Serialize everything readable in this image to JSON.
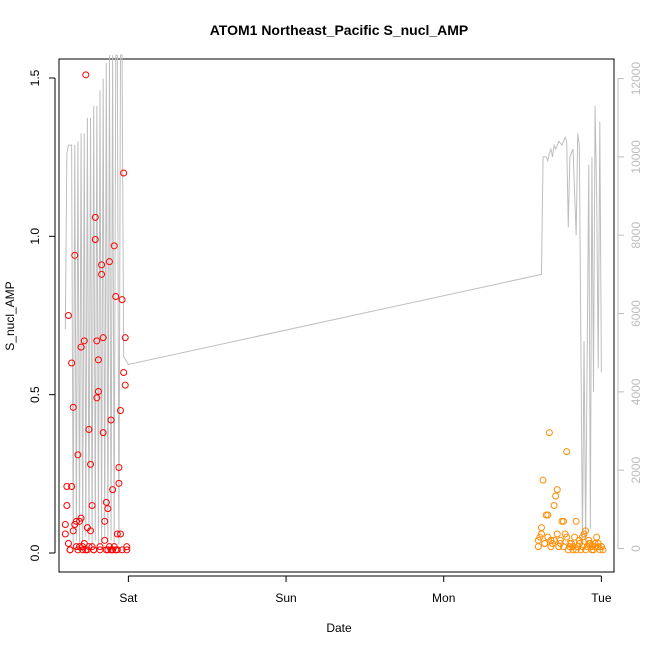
{
  "chart_data": {
    "type": "scatter",
    "title": "ATOM1 Northeast_Pacific S_nucl_AMP",
    "xlabel": "Date",
    "ylabel": "S_nucl_AMP",
    "x_ticks": [
      {
        "x": 1.0,
        "label": "Sat"
      },
      {
        "x": 2.0,
        "label": "Sun"
      },
      {
        "x": 3.0,
        "label": "Mon"
      },
      {
        "x": 4.0,
        "label": "Tue"
      }
    ],
    "xlim": [
      0.56,
      4.08
    ],
    "ylim": [
      -0.06,
      1.56
    ],
    "y_ticks": [
      0.0,
      0.5,
      1.0,
      1.5
    ],
    "y2lim": [
      -0.6,
      12.5
    ],
    "y2_ticks": [
      0,
      2000,
      4000,
      6000,
      8000,
      10000,
      12000
    ],
    "colors": {
      "series1": "#ff0000",
      "series2": "#ff8c00",
      "line": "#bebebe",
      "axis": "#000000",
      "right_axis": "#bdbdbd"
    },
    "series": [
      {
        "color": "#ff0000",
        "x": [
          0.6,
          0.61,
          0.62,
          0.63,
          0.64,
          0.65,
          0.66,
          0.67,
          0.68,
          0.69,
          0.7,
          0.71,
          0.72,
          0.73,
          0.74,
          0.75,
          0.76,
          0.77,
          0.78,
          0.79,
          0.8,
          0.81,
          0.82,
          0.83,
          0.84,
          0.85,
          0.86,
          0.87,
          0.88,
          0.89,
          0.9,
          0.91,
          0.92,
          0.93,
          0.94,
          0.95,
          0.96,
          0.97,
          0.98,
          0.99,
          0.6,
          0.61,
          0.62,
          0.63,
          0.64,
          0.65,
          0.66,
          0.67,
          0.68,
          0.69,
          0.7,
          0.71,
          0.72,
          0.73,
          0.74,
          0.75,
          0.76,
          0.77,
          0.78,
          0.79,
          0.8,
          0.81,
          0.82,
          0.83,
          0.84,
          0.85,
          0.86,
          0.87,
          0.88,
          0.89,
          0.9,
          0.91,
          0.92,
          0.93,
          0.94,
          0.95,
          0.96,
          0.97,
          0.98,
          0.99
        ],
        "values": [
          0.09,
          0.21,
          0.75,
          0.01,
          0.6,
          0.46,
          0.94,
          0.02,
          0.31,
          0.1,
          0.65,
          0.02,
          0.67,
          1.51,
          0.01,
          0.39,
          0.28,
          0.15,
          0.01,
          1.06,
          0.67,
          0.61,
          0.02,
          0.91,
          0.68,
          0.04,
          0.16,
          0.14,
          0.92,
          0.42,
          0.2,
          0.97,
          0.81,
          0.06,
          0.22,
          0.45,
          0.01,
          1.2,
          0.68,
          0.02,
          0.06,
          0.15,
          0.03,
          0.01,
          0.21,
          0.07,
          0.09,
          0.1,
          0.01,
          0.02,
          0.11,
          0.01,
          0.03,
          0.01,
          0.08,
          0.02,
          0.07,
          0.02,
          0.01,
          0.99,
          0.49,
          0.51,
          0.01,
          0.88,
          0.38,
          0.1,
          0.01,
          0.01,
          0.02,
          0.01,
          0.01,
          0.02,
          0.01,
          0.01,
          0.27,
          0.06,
          0.8,
          0.57,
          0.53,
          0.01
        ]
      },
      {
        "color": "#ff8c00",
        "x": [
          3.6,
          3.61,
          3.62,
          3.63,
          3.64,
          3.65,
          3.66,
          3.67,
          3.68,
          3.69,
          3.7,
          3.71,
          3.72,
          3.73,
          3.74,
          3.75,
          3.76,
          3.77,
          3.78,
          3.79,
          3.8,
          3.81,
          3.82,
          3.83,
          3.84,
          3.85,
          3.86,
          3.87,
          3.88,
          3.89,
          3.9,
          3.91,
          3.92,
          3.93,
          3.94,
          3.95,
          3.96,
          3.97,
          3.98,
          3.99,
          4.0,
          4.01,
          3.6,
          3.62,
          3.64,
          3.66,
          3.68,
          3.7,
          3.72,
          3.74,
          3.76,
          3.78,
          3.8,
          3.82,
          3.84,
          3.86,
          3.88,
          3.9,
          3.92,
          3.94,
          3.96,
          3.98,
          4.0
        ],
        "values": [
          0.02,
          0.05,
          0.08,
          0.23,
          0.03,
          0.12,
          0.05,
          0.38,
          0.04,
          0.03,
          0.15,
          0.18,
          0.06,
          0.02,
          0.04,
          0.1,
          0.1,
          0.06,
          0.32,
          0.01,
          0.02,
          0.03,
          0.01,
          0.05,
          0.1,
          0.02,
          0.03,
          0.01,
          0.05,
          0.06,
          0.01,
          0.02,
          0.04,
          0.03,
          0.02,
          0.01,
          0.03,
          0.05,
          0.02,
          0.01,
          0.02,
          0.01,
          0.04,
          0.06,
          0.03,
          0.12,
          0.02,
          0.04,
          0.2,
          0.03,
          0.02,
          0.05,
          0.03,
          0.02,
          0.01,
          0.04,
          0.02,
          0.07,
          0.03,
          0.01,
          0.02,
          0.03,
          0.02
        ]
      },
      {
        "type": "line",
        "axis": "right",
        "color": "#bebebe",
        "x": [
          0.6,
          0.61,
          0.62,
          0.64,
          0.65,
          0.66,
          0.67,
          0.68,
          0.69,
          0.7,
          0.71,
          0.72,
          0.73,
          0.74,
          0.75,
          0.76,
          0.77,
          0.78,
          0.79,
          0.8,
          0.81,
          0.82,
          0.83,
          0.84,
          0.85,
          0.86,
          0.87,
          0.88,
          0.89,
          0.9,
          0.91,
          0.92,
          0.93,
          0.94,
          0.95,
          0.96,
          0.97,
          1.0,
          3.62,
          3.63,
          3.65,
          3.66,
          3.67,
          3.68,
          3.69,
          3.7,
          3.71,
          3.72,
          3.73,
          3.75,
          3.77,
          3.78,
          3.79,
          3.8,
          3.82,
          3.84,
          3.85,
          3.86,
          3.88,
          3.89,
          3.9,
          3.92,
          3.93,
          3.94,
          3.95,
          3.96,
          3.97,
          3.98,
          3.99,
          4.0
        ],
        "values": [
          5.6,
          10.1,
          10.3,
          10.3,
          0.1,
          10.3,
          0.2,
          10.4,
          0.1,
          10.6,
          0.1,
          10.6,
          0.3,
          11.0,
          0.2,
          11.0,
          0.1,
          11.3,
          0.2,
          11.3,
          0.1,
          11.7,
          0.1,
          12.0,
          0.3,
          12.4,
          0.1,
          12.6,
          0.2,
          12.6,
          0.1,
          12.6,
          12.6,
          0.1,
          12.6,
          12.6,
          4.9,
          4.7,
          7.0,
          10.0,
          10.0,
          9.9,
          10.1,
          10.2,
          10.0,
          10.3,
          10.2,
          10.3,
          10.4,
          10.3,
          10.5,
          10.4,
          8.2,
          10.0,
          10.2,
          8.0,
          10.6,
          10.3,
          0.1,
          5.3,
          0.2,
          9.8,
          0.5,
          10.0,
          4.0,
          11.3,
          9.0,
          4.6,
          10.9,
          4.5
        ]
      }
    ]
  }
}
